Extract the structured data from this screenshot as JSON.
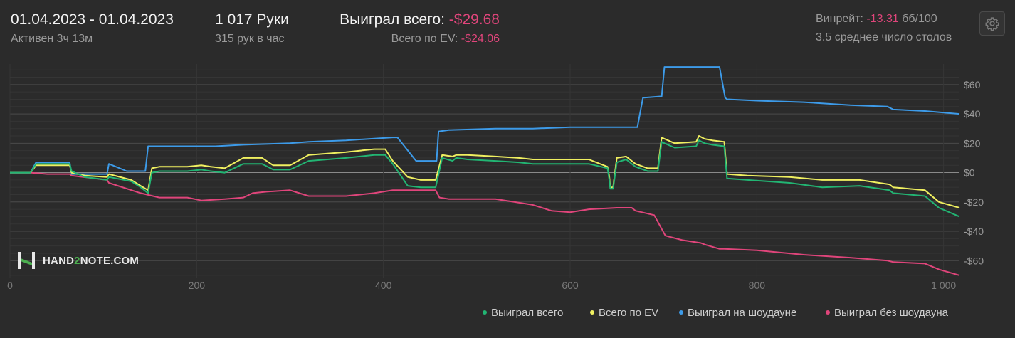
{
  "header": {
    "date_range": "01.04.2023 - 01.04.2023",
    "active": "Активен 3ч 13м",
    "hands": "1 017 Руки",
    "hands_per_hour": "315 рук в час",
    "won_label": "Выиграл всего:",
    "won_value": "-$29.68",
    "ev_label": "Всего по EV:",
    "ev_value": "-$24.06",
    "winrate_label": "Винрейт:",
    "winrate_value": "-13.31",
    "winrate_unit": "бб/100",
    "tables": "3.5 среднее число столов"
  },
  "logo": {
    "text_a": "HAND",
    "text_b": "2",
    "text_c": "NOTE.COM"
  },
  "colors": {
    "won": "#22b573",
    "ev": "#f0f060",
    "showdown": "#3d9be9",
    "nonshowdown": "#e0457b",
    "accent_negative": "#e0457b"
  },
  "icons": {
    "settings": "gear-icon",
    "logo": "hand2note-logo-icon"
  },
  "chart_data": {
    "type": "line",
    "xlim": [
      0,
      1017
    ],
    "ylim": [
      -72,
      74
    ],
    "x_ticks": [
      0,
      200,
      400,
      600,
      800,
      1000
    ],
    "x_tick_labels": [
      "0",
      "200",
      "400",
      "600",
      "800",
      "1 000"
    ],
    "y_ticks": [
      60,
      40,
      20,
      0,
      -20,
      -40,
      -60
    ],
    "y_tick_labels": [
      "$60",
      "$40",
      "$20",
      "$0",
      "-$20",
      "-$40",
      "-$60"
    ],
    "grid": true,
    "legend_position": "bottom-right",
    "series": [
      {
        "name": "Выиграл всего",
        "color": "#22b573",
        "x": [
          0,
          22,
          28,
          64,
          66,
          80,
          104,
          106,
          130,
          140,
          148,
          152,
          160,
          190,
          205,
          215,
          230,
          250,
          270,
          282,
          300,
          320,
          340,
          360,
          390,
          402,
          410,
          426,
          440,
          456,
          463,
          474,
          478,
          490,
          520,
          545,
          560,
          580,
          600,
          620,
          640,
          642,
          643,
          646,
          650,
          660,
          670,
          683,
          694,
          698,
          701,
          712,
          735,
          738,
          744,
          752,
          765,
          768,
          790,
          835,
          870,
          910,
          942,
          946,
          980,
          995,
          1017
        ],
        "y": [
          0,
          0,
          6,
          6,
          1,
          -3,
          -5,
          -3,
          -6,
          -10,
          -14,
          0,
          1,
          1,
          2,
          1,
          0,
          6,
          6,
          2,
          2,
          8,
          9,
          10,
          12,
          12,
          6,
          -9,
          -10,
          -10,
          10,
          8,
          10,
          9,
          8,
          7,
          6,
          6,
          6,
          6,
          3,
          -5,
          -11,
          -11,
          7,
          9,
          4,
          1,
          1,
          21,
          20,
          17,
          18,
          22,
          20,
          19,
          18,
          -4,
          -5,
          -7,
          -10,
          -9,
          -12,
          -14,
          -16,
          -24,
          -30
        ]
      },
      {
        "name": "Всего по EV",
        "color": "#f0f060",
        "x": [
          0,
          22,
          28,
          64,
          66,
          80,
          104,
          106,
          130,
          140,
          148,
          152,
          160,
          190,
          205,
          215,
          230,
          250,
          270,
          282,
          300,
          320,
          340,
          360,
          390,
          402,
          410,
          426,
          440,
          456,
          463,
          474,
          478,
          490,
          520,
          545,
          560,
          580,
          600,
          620,
          640,
          642,
          643,
          646,
          650,
          660,
          670,
          683,
          694,
          698,
          701,
          712,
          735,
          738,
          744,
          752,
          765,
          768,
          790,
          835,
          870,
          910,
          942,
          946,
          980,
          995,
          1017
        ],
        "y": [
          0,
          0,
          5,
          5,
          0,
          -2,
          -3,
          -1,
          -5,
          -9,
          -12,
          3,
          4,
          4,
          5,
          4,
          3,
          10,
          10,
          5,
          5,
          12,
          13,
          14,
          16,
          16,
          8,
          -3,
          -5,
          -5,
          12,
          11,
          12,
          12,
          11,
          10,
          9,
          9,
          9,
          9,
          4,
          -3,
          -10,
          -10,
          10,
          11,
          6,
          3,
          3,
          24,
          23,
          20,
          21,
          25,
          23,
          22,
          21,
          -1,
          -2,
          -3,
          -5,
          -5,
          -8,
          -10,
          -12,
          -20,
          -24
        ]
      },
      {
        "name": "Выиграл на шоудауне",
        "color": "#3d9be9",
        "x": [
          0,
          22,
          28,
          64,
          66,
          104,
          106,
          125,
          145,
          148,
          220,
          250,
          300,
          320,
          360,
          410,
          415,
          435,
          440,
          457,
          459,
          470,
          520,
          560,
          600,
          640,
          672,
          678,
          698,
          701,
          760,
          766,
          768,
          800,
          850,
          900,
          940,
          946,
          980,
          1017
        ],
        "y": [
          0,
          0,
          7,
          7,
          -1,
          -1,
          6,
          1,
          1,
          18,
          18,
          19,
          20,
          21,
          22,
          24,
          24,
          8,
          8,
          8,
          28,
          29,
          30,
          30,
          31,
          31,
          31,
          51,
          52,
          72,
          72,
          51,
          50,
          49,
          48,
          46,
          45,
          43,
          42,
          40
        ]
      },
      {
        "name": "Выиграл без шоудауна",
        "color": "#e0457b",
        "x": [
          0,
          22,
          40,
          64,
          66,
          104,
          106,
          140,
          160,
          190,
          205,
          230,
          250,
          260,
          275,
          300,
          315,
          320,
          360,
          390,
          410,
          440,
          456,
          460,
          470,
          520,
          540,
          560,
          580,
          600,
          620,
          650,
          666,
          670,
          690,
          702,
          720,
          740,
          744,
          760,
          765,
          800,
          850,
          900,
          940,
          946,
          980,
          995,
          1017
        ],
        "y": [
          0,
          0,
          -1,
          -1,
          -2,
          -5,
          -7,
          -14,
          -17,
          -17,
          -19,
          -18,
          -17,
          -14,
          -13,
          -12,
          -15,
          -16,
          -16,
          -14,
          -12,
          -12,
          -12,
          -17,
          -18,
          -18,
          -20,
          -22,
          -26,
          -27,
          -25,
          -24,
          -24,
          -26,
          -29,
          -43,
          -46,
          -48,
          -49,
          -52,
          -52,
          -53,
          -56,
          -58,
          -60,
          -61,
          -62,
          -66,
          -70
        ]
      }
    ]
  }
}
